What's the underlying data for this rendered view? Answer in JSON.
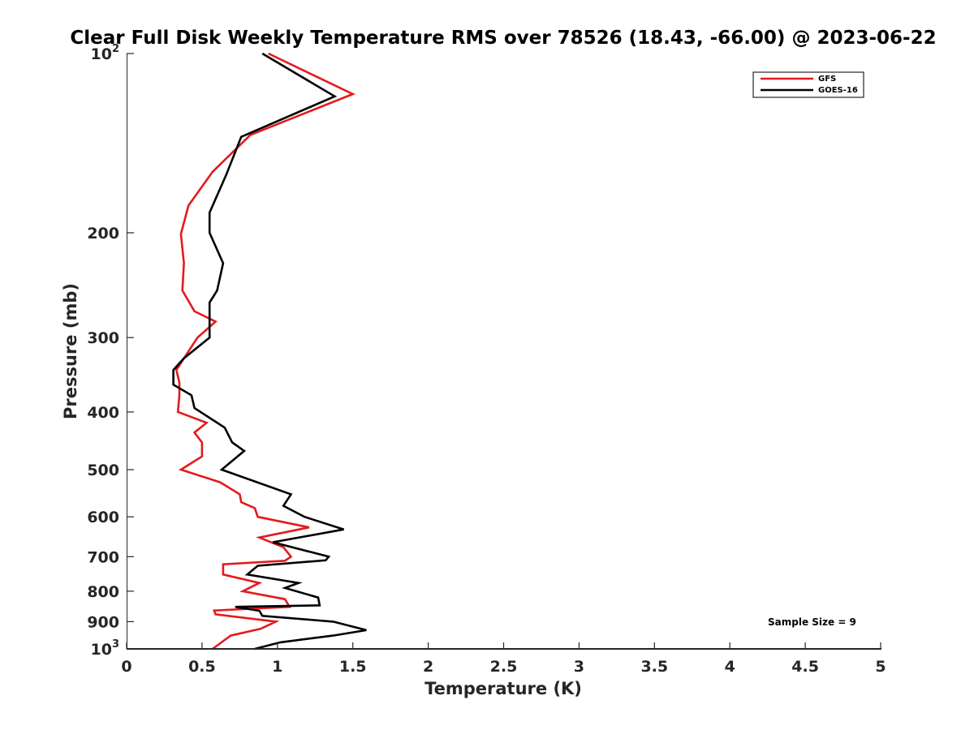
{
  "chart_data": {
    "type": "line",
    "title": "Clear Full Disk Weekly Temperature RMS over 78526 (18.43, -66.00) @ 2023-06-22",
    "xlabel": "Temperature (K)",
    "ylabel": "Pressure (mb)",
    "xlim": [
      0,
      5
    ],
    "ylim": [
      100,
      1000
    ],
    "y_scale": "log",
    "y_reversed": true,
    "x_ticks": [
      {
        "value": 0,
        "label": "0"
      },
      {
        "value": 0.5,
        "label": "0.5"
      },
      {
        "value": 1,
        "label": "1"
      },
      {
        "value": 1.5,
        "label": "1.5"
      },
      {
        "value": 2,
        "label": "2"
      },
      {
        "value": 2.5,
        "label": "2.5"
      },
      {
        "value": 3,
        "label": "3"
      },
      {
        "value": 3.5,
        "label": "3.5"
      },
      {
        "value": 4,
        "label": "4"
      },
      {
        "value": 4.5,
        "label": "4.5"
      },
      {
        "value": 5,
        "label": "5"
      }
    ],
    "y_ticks": [
      {
        "value": 100,
        "label": "10",
        "sup": "2"
      },
      {
        "value": 200,
        "label": "200"
      },
      {
        "value": 300,
        "label": "300"
      },
      {
        "value": 400,
        "label": "400"
      },
      {
        "value": 500,
        "label": "500"
      },
      {
        "value": 600,
        "label": "600"
      },
      {
        "value": 700,
        "label": "700"
      },
      {
        "value": 800,
        "label": "800"
      },
      {
        "value": 900,
        "label": "900"
      },
      {
        "value": 1000,
        "label": "10",
        "sup": "3"
      }
    ],
    "grid": false,
    "legend_position": "top-right",
    "annotation": "Sample Size = 9",
    "series": [
      {
        "name": "GFS",
        "color": "#e41a1c",
        "points": [
          [
            0.94,
            100
          ],
          [
            1.5,
            117
          ],
          [
            0.82,
            137
          ],
          [
            0.57,
            158
          ],
          [
            0.41,
            180
          ],
          [
            0.36,
            201
          ],
          [
            0.38,
            225
          ],
          [
            0.37,
            250
          ],
          [
            0.45,
            271
          ],
          [
            0.59,
            282
          ],
          [
            0.47,
            300
          ],
          [
            0.33,
            340
          ],
          [
            0.35,
            357
          ],
          [
            0.35,
            375
          ],
          [
            0.34,
            400
          ],
          [
            0.53,
            417
          ],
          [
            0.45,
            433
          ],
          [
            0.5,
            450
          ],
          [
            0.5,
            475
          ],
          [
            0.36,
            500
          ],
          [
            0.62,
            525
          ],
          [
            0.75,
            550
          ],
          [
            0.76,
            567
          ],
          [
            0.85,
            580
          ],
          [
            0.87,
            600
          ],
          [
            1.21,
            625
          ],
          [
            0.88,
            650
          ],
          [
            1.04,
            675
          ],
          [
            1.09,
            700
          ],
          [
            1.05,
            711
          ],
          [
            0.64,
            721
          ],
          [
            0.64,
            750
          ],
          [
            0.88,
            775
          ],
          [
            0.77,
            800
          ],
          [
            1.05,
            825
          ],
          [
            1.08,
            850
          ],
          [
            0.58,
            862
          ],
          [
            0.59,
            875
          ],
          [
            0.99,
            900
          ],
          [
            0.89,
            925
          ],
          [
            0.69,
            950
          ],
          [
            0.57,
            1000
          ]
        ]
      },
      {
        "name": "GOES-16",
        "color": "#000000",
        "points": [
          [
            0.9,
            100
          ],
          [
            1.38,
            118
          ],
          [
            0.76,
            138
          ],
          [
            0.66,
            160
          ],
          [
            0.55,
            185
          ],
          [
            0.55,
            200
          ],
          [
            0.64,
            225
          ],
          [
            0.6,
            250
          ],
          [
            0.55,
            262
          ],
          [
            0.55,
            300
          ],
          [
            0.38,
            325
          ],
          [
            0.31,
            340
          ],
          [
            0.31,
            360
          ],
          [
            0.43,
            375
          ],
          [
            0.45,
            394
          ],
          [
            0.65,
            425
          ],
          [
            0.7,
            450
          ],
          [
            0.78,
            465
          ],
          [
            0.63,
            500
          ],
          [
            1.09,
            550
          ],
          [
            1.04,
            575
          ],
          [
            1.18,
            600
          ],
          [
            1.44,
            630
          ],
          [
            0.97,
            662
          ],
          [
            1.34,
            700
          ],
          [
            1.32,
            710
          ],
          [
            0.87,
            725
          ],
          [
            0.8,
            750
          ],
          [
            1.14,
            775
          ],
          [
            1.05,
            790
          ],
          [
            1.27,
            820
          ],
          [
            1.28,
            845
          ],
          [
            0.72,
            850
          ],
          [
            0.88,
            863
          ],
          [
            0.9,
            880
          ],
          [
            1.37,
            900
          ],
          [
            1.59,
            930
          ],
          [
            1.37,
            950
          ],
          [
            1.02,
            975
          ],
          [
            0.85,
            1000
          ]
        ]
      }
    ]
  }
}
